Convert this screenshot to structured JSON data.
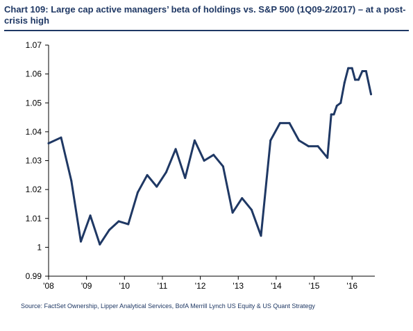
{
  "chart_data": {
    "type": "line",
    "title": "Chart 109: Large cap active managers’ beta of holdings vs. S&P 500 (1Q09-2/2017) – at a post-crisis high",
    "xlabel": "",
    "ylabel": "",
    "ylim": [
      0.99,
      1.07
    ],
    "yticks": [
      "1.07",
      "1.06",
      "1.05",
      "1.04",
      "1.03",
      "1.02",
      "1.01",
      "1",
      "0.99"
    ],
    "ytick_values": [
      1.07,
      1.06,
      1.05,
      1.04,
      1.03,
      1.02,
      1.01,
      1.0,
      0.99
    ],
    "xticks": [
      "'08",
      "'09",
      "'10",
      "'11",
      "'12",
      "'13",
      "'14",
      "'15",
      "'16"
    ],
    "xtick_values": [
      2008,
      2009,
      2010,
      2011,
      2012,
      2013,
      2014,
      2015,
      2016
    ],
    "xlim": [
      2008,
      2016.6
    ],
    "grid": false,
    "line_color": "#1f3864",
    "series": [
      {
        "x": [
          2008.0,
          2008.33,
          2008.6,
          2008.85,
          2009.1,
          2009.35,
          2009.6,
          2009.85,
          2010.1,
          2010.35,
          2010.6,
          2010.85,
          2011.1,
          2011.35,
          2011.6,
          2011.85,
          2012.1,
          2012.35,
          2012.6,
          2012.85,
          2013.1,
          2013.35,
          2013.6,
          2013.85,
          2014.1,
          2014.35,
          2014.6,
          2014.85,
          2015.1,
          2015.35,
          2015.45,
          2015.52,
          2015.6,
          2015.7,
          2015.8,
          2015.9,
          2016.0,
          2016.08,
          2016.17,
          2016.27,
          2016.37,
          2016.5
        ],
        "values": [
          1.036,
          1.038,
          1.023,
          1.002,
          1.011,
          1.001,
          1.006,
          1.009,
          1.008,
          1.019,
          1.025,
          1.021,
          1.026,
          1.034,
          1.024,
          1.037,
          1.03,
          1.032,
          1.028,
          1.012,
          1.017,
          1.013,
          1.004,
          1.037,
          1.043,
          1.043,
          1.037,
          1.035,
          1.035,
          1.031,
          1.046,
          1.046,
          1.049,
          1.05,
          1.057,
          1.062,
          1.062,
          1.058,
          1.058,
          1.061,
          1.061,
          1.053
        ]
      }
    ]
  },
  "source": "Source: FactSet Ownership, Lipper Analytical Services,  BofA Merrill Lynch US Equity & US Quant Strategy"
}
